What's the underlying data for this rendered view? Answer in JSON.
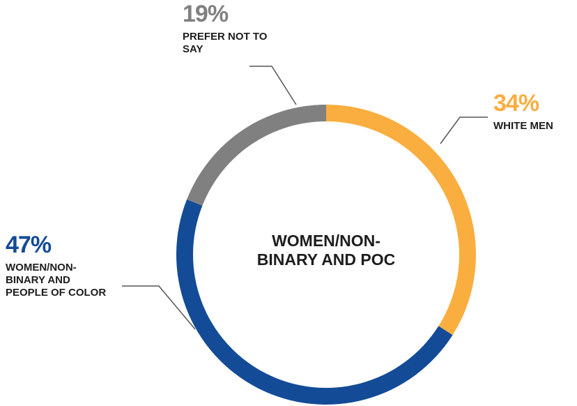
{
  "chart_data": {
    "type": "donut",
    "center_label": "WOMEN/NON-BINARY AND POC",
    "categories": [
      "WHITE MEN",
      "WOMEN/NON-BINARY AND PEOPLE OF COLOR",
      "PREFER NOT TO SAY"
    ],
    "values": [
      34,
      47,
      19
    ],
    "value_labels": [
      "34%",
      "47%",
      "19%"
    ],
    "colors": [
      "#f9ae3f",
      "#134b97",
      "#808080"
    ]
  }
}
